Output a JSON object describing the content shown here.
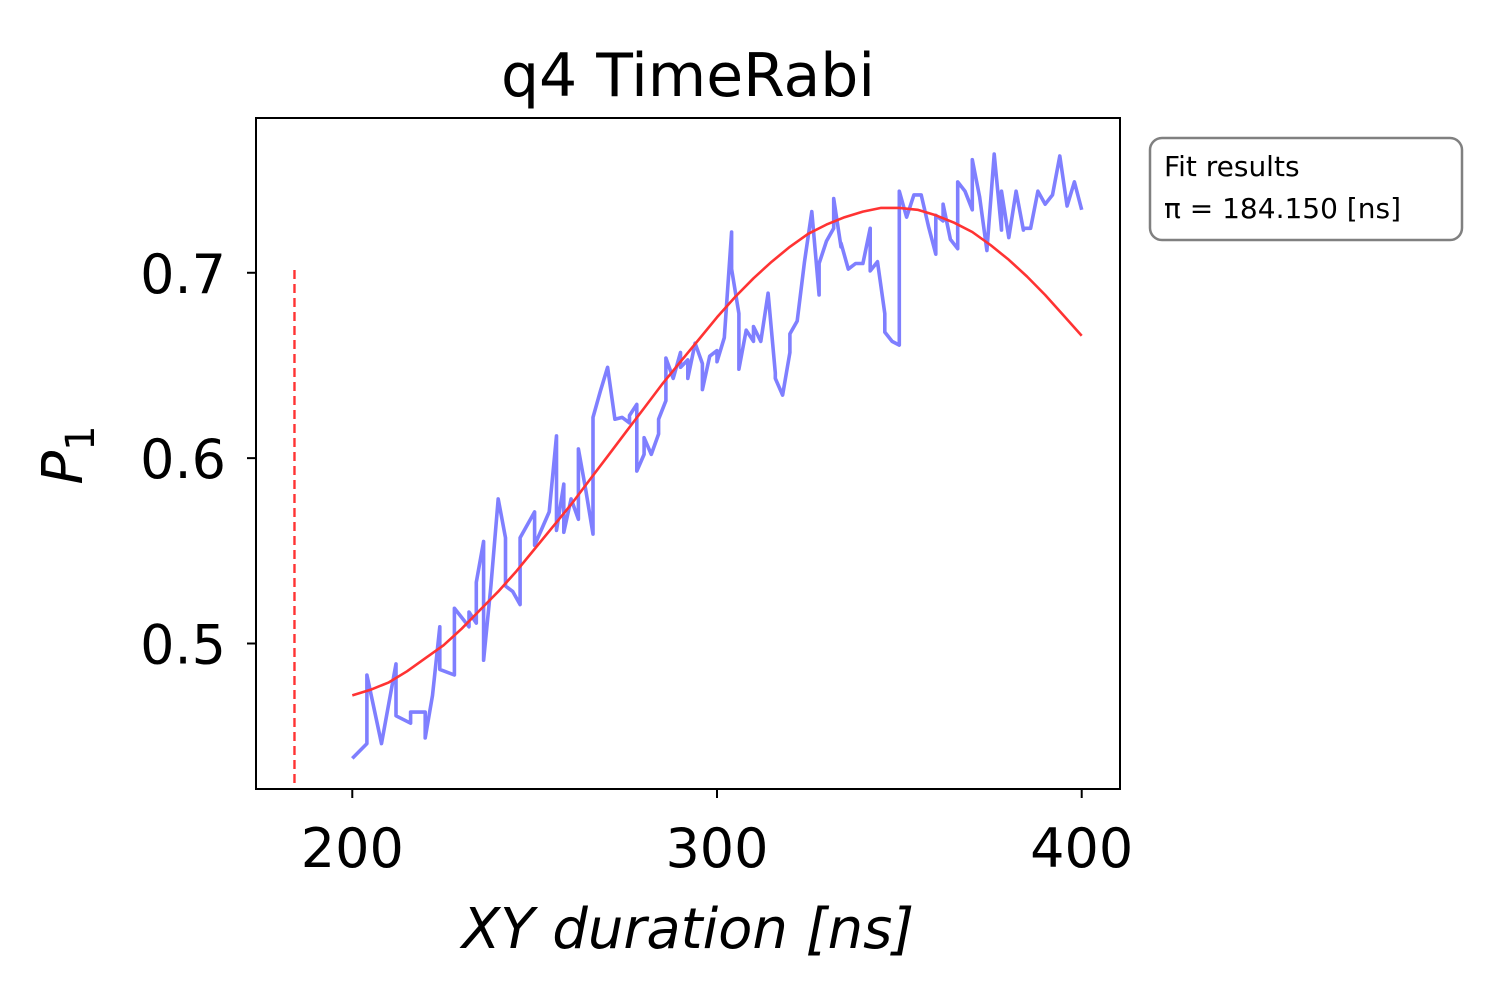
{
  "chart_data": {
    "type": "line",
    "title": "q4 TimeRabi",
    "xlabel": "XY duration [ns]",
    "ylabel": "P1",
    "xlim": [
      173.6,
      410.5
    ],
    "ylim": [
      0.4215,
      0.7835
    ],
    "xticks": [
      200,
      300,
      400
    ],
    "xtick_labels": [
      "200",
      "300",
      "400"
    ],
    "yticks": [
      0.5,
      0.6,
      0.7
    ],
    "ytick_labels": [
      "0.5",
      "0.6",
      "0.7"
    ],
    "grid": false,
    "series": [
      {
        "role": "data",
        "color": "#7f7fff",
        "x": [
          200,
          204,
          204,
          208,
          212,
          212,
          216,
          216,
          220,
          220,
          222,
          224,
          224,
          228,
          228,
          232,
          232,
          234,
          234,
          236,
          236,
          238,
          240,
          242,
          242,
          244,
          246,
          246,
          250,
          250,
          252,
          254,
          256,
          256,
          258,
          258,
          260,
          262,
          262,
          264,
          266,
          266,
          268,
          270,
          272,
          272,
          274,
          276,
          276,
          278,
          278,
          280,
          280,
          282,
          284,
          284,
          286,
          286,
          288,
          290,
          290,
          292,
          292,
          294,
          296,
          296,
          298,
          300,
          300,
          302,
          304,
          304,
          306,
          306,
          308,
          310,
          310,
          312,
          314,
          316,
          316,
          318,
          320,
          320,
          322,
          324,
          326,
          328,
          328,
          330,
          332,
          332,
          334,
          334,
          336,
          338,
          340,
          342,
          342,
          344,
          346,
          346,
          348,
          350,
          350,
          352,
          354,
          356,
          358,
          360,
          360,
          362,
          362,
          364,
          366,
          366,
          368,
          370,
          370,
          372,
          374,
          376,
          378,
          378,
          380,
          382,
          384,
          384,
          386,
          388,
          390,
          392,
          394,
          396,
          398,
          400
        ],
        "y": [
          0.438,
          0.446,
          0.483,
          0.446,
          0.489,
          0.461,
          0.457,
          0.463,
          0.463,
          0.449,
          0.472,
          0.509,
          0.486,
          0.483,
          0.519,
          0.509,
          0.517,
          0.511,
          0.533,
          0.555,
          0.491,
          0.531,
          0.578,
          0.557,
          0.531,
          0.528,
          0.521,
          0.557,
          0.571,
          0.553,
          0.562,
          0.571,
          0.612,
          0.561,
          0.586,
          0.56,
          0.578,
          0.567,
          0.605,
          0.583,
          0.559,
          0.622,
          0.636,
          0.649,
          0.621,
          0.621,
          0.622,
          0.619,
          0.623,
          0.629,
          0.593,
          0.602,
          0.611,
          0.602,
          0.613,
          0.621,
          0.631,
          0.654,
          0.643,
          0.657,
          0.649,
          0.653,
          0.643,
          0.662,
          0.651,
          0.637,
          0.655,
          0.658,
          0.652,
          0.665,
          0.722,
          0.702,
          0.678,
          0.648,
          0.669,
          0.663,
          0.671,
          0.663,
          0.689,
          0.646,
          0.643,
          0.634,
          0.657,
          0.667,
          0.674,
          0.706,
          0.733,
          0.688,
          0.705,
          0.717,
          0.724,
          0.74,
          0.714,
          0.716,
          0.702,
          0.705,
          0.705,
          0.724,
          0.701,
          0.706,
          0.678,
          0.668,
          0.663,
          0.661,
          0.744,
          0.73,
          0.742,
          0.742,
          0.725,
          0.71,
          0.731,
          0.728,
          0.737,
          0.718,
          0.713,
          0.749,
          0.744,
          0.734,
          0.761,
          0.741,
          0.712,
          0.764,
          0.723,
          0.744,
          0.719,
          0.744,
          0.723,
          0.724,
          0.724,
          0.744,
          0.737,
          0.742,
          0.763,
          0.736,
          0.749,
          0.734
        ]
      },
      {
        "role": "fit",
        "color": "#ff3333",
        "x": [
          200,
          205,
          210,
          215,
          220,
          225,
          230,
          235,
          240,
          245,
          250,
          255,
          260,
          265,
          270,
          275,
          280,
          285,
          290,
          295,
          300,
          305,
          310,
          315,
          320,
          325,
          330,
          335,
          340,
          345,
          350,
          355,
          360,
          365,
          370,
          375,
          380,
          385,
          390,
          395,
          400
        ],
        "y": [
          0.472,
          0.475,
          0.479,
          0.485,
          0.492,
          0.499,
          0.508,
          0.518,
          0.528,
          0.539,
          0.551,
          0.563,
          0.575,
          0.588,
          0.601,
          0.614,
          0.627,
          0.64,
          0.652,
          0.664,
          0.676,
          0.687,
          0.697,
          0.706,
          0.714,
          0.721,
          0.726,
          0.73,
          0.733,
          0.735,
          0.735,
          0.734,
          0.731,
          0.727,
          0.722,
          0.715,
          0.707,
          0.698,
          0.688,
          0.677,
          0.666
        ]
      }
    ],
    "pi_marker": {
      "x": 184.15,
      "y_top": 0.7015,
      "color": "#ff3333"
    },
    "fit_box": {
      "lines": [
        "Fit results",
        "π = 184.150 [ns]"
      ]
    }
  }
}
